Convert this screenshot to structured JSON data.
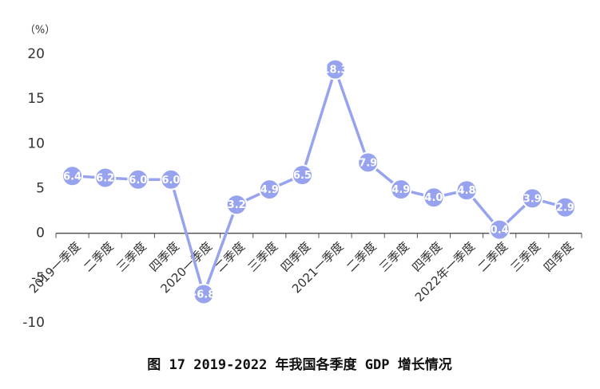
{
  "chart_data": {
    "type": "line",
    "title": "图 17 2019-2022 年我国各季度 GDP 增长情况",
    "y_unit": "（%）",
    "categories": [
      "2019一季度",
      "二季度",
      "三季度",
      "四季度",
      "2020一季度",
      "二季度",
      "三季度",
      "四季度",
      "2021一季度",
      "二季度",
      "三季度",
      "四季度",
      "2022年一季度",
      "二季度",
      "三季度",
      "四季度"
    ],
    "series": [
      {
        "name": "GDP增长",
        "color": "#97a3ef",
        "values": [
          6.4,
          6.2,
          6.0,
          6.0,
          -6.8,
          3.2,
          4.9,
          6.5,
          18.3,
          7.9,
          4.9,
          4.0,
          4.8,
          0.4,
          3.9,
          2.9
        ],
        "value_labels": [
          "6.4",
          "6.2",
          "6.0",
          "6.0",
          "-6.8",
          "3.2",
          "4.9",
          "6.5",
          "18.3",
          "7.9",
          "4.9",
          "4.0",
          "4.8",
          "0.4",
          "3.9",
          "2.9"
        ]
      }
    ],
    "ylim": [
      -10,
      20
    ],
    "yticks": [
      -10,
      -5,
      0,
      5,
      10,
      15,
      20
    ],
    "grid": false
  }
}
